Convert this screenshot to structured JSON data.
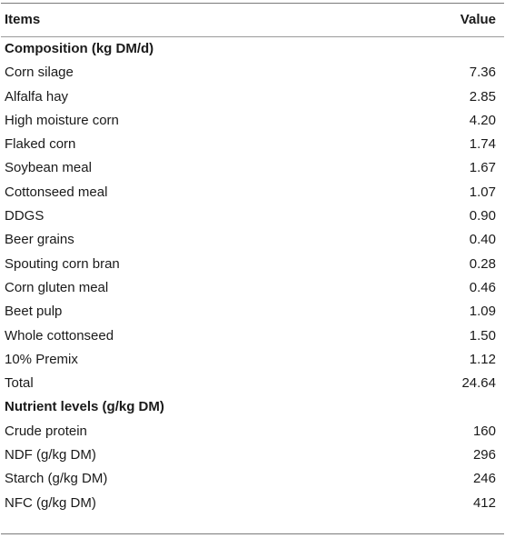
{
  "table": {
    "header": {
      "items": "Items",
      "value": "Value"
    },
    "sections": [
      {
        "title": "Composition (kg DM/d)",
        "rows": [
          {
            "label": "Corn silage",
            "value": "7.36"
          },
          {
            "label": "Alfalfa hay",
            "value": "2.85"
          },
          {
            "label": "High moisture corn",
            "value": "4.20"
          },
          {
            "label": "Flaked corn",
            "value": "1.74"
          },
          {
            "label": "Soybean meal",
            "value": "1.67"
          },
          {
            "label": "Cottonseed meal",
            "value": "1.07"
          },
          {
            "label": "DDGS",
            "value": "0.90"
          },
          {
            "label": "Beer grains",
            "value": "0.40"
          },
          {
            "label": "Spouting corn bran",
            "value": "0.28"
          },
          {
            "label": "Corn gluten meal",
            "value": "0.46"
          },
          {
            "label": "Beet pulp",
            "value": "1.09"
          },
          {
            "label": "Whole cottonseed",
            "value": "1.50"
          },
          {
            "label": "10% Premix",
            "value": "1.12"
          },
          {
            "label": "Total",
            "value": "24.64"
          }
        ]
      },
      {
        "title": "Nutrient levels (g/kg DM)",
        "rows": [
          {
            "label": "Crude protein",
            "value": "160"
          },
          {
            "label": "NDF (g/kg DM)",
            "value": "296"
          },
          {
            "label": "Starch (g/kg DM)",
            "value": "246"
          },
          {
            "label": "NFC (g/kg DM)",
            "value": "412"
          }
        ]
      }
    ]
  }
}
